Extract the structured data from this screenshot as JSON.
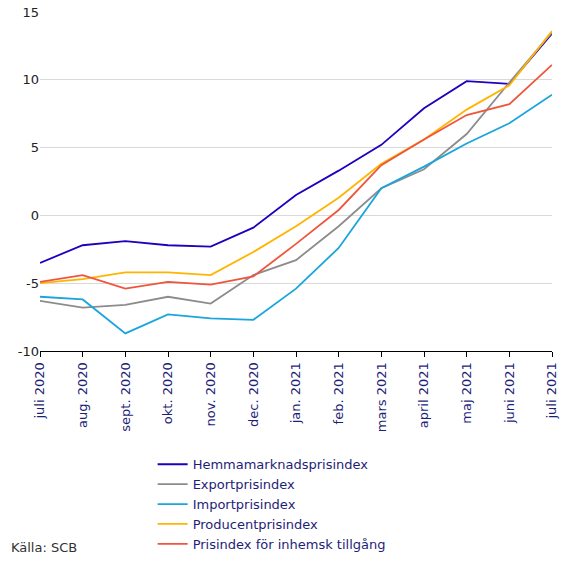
{
  "chart_data": {
    "type": "line",
    "source": "Källa: SCB",
    "categories": [
      "juli 2020",
      "aug. 2020",
      "sept. 2020",
      "okt. 2020",
      "nov. 2020",
      "dec. 2020",
      "jan. 2021",
      "feb. 2021",
      "mars 2021",
      "april 2021",
      "maj 2021",
      "juni 2021",
      "juli 2021"
    ],
    "series": [
      {
        "name": "Hemmamarknadsprisindex",
        "color": "#1e00be",
        "values": [
          -3.5,
          -2.2,
          -1.9,
          -2.2,
          -2.3,
          -0.9,
          1.5,
          3.3,
          5.2,
          7.9,
          9.9,
          9.7,
          13.4
        ]
      },
      {
        "name": "Exportprisindex",
        "color": "#8c8c8c",
        "values": [
          -6.3,
          -6.8,
          -6.6,
          -6.0,
          -6.5,
          -4.4,
          -3.3,
          -0.8,
          2.0,
          3.4,
          6.0,
          9.8,
          13.5
        ]
      },
      {
        "name": "Importprisindex",
        "color": "#1aa5dc",
        "values": [
          -6.0,
          -6.2,
          -8.7,
          -7.3,
          -7.6,
          -7.7,
          -5.4,
          -2.4,
          2.0,
          3.6,
          5.3,
          6.8,
          8.9
        ]
      },
      {
        "name": "Producentprisindex",
        "color": "#ffb400",
        "values": [
          -5.0,
          -4.7,
          -4.2,
          -4.2,
          -4.4,
          -2.7,
          -0.8,
          1.3,
          3.8,
          5.6,
          7.8,
          9.6,
          13.6
        ]
      },
      {
        "name": "Prisindex för inhemsk tillgång",
        "color": "#f0553c",
        "values": [
          -4.9,
          -4.4,
          -5.4,
          -4.9,
          -5.1,
          -4.5,
          -2.1,
          0.4,
          3.7,
          5.6,
          7.4,
          8.2,
          11.1
        ]
      }
    ],
    "ylim": [
      -10,
      15
    ],
    "yticks": [
      -10,
      -5,
      0,
      5,
      10,
      15
    ],
    "grid": true,
    "legend": "bottom"
  }
}
